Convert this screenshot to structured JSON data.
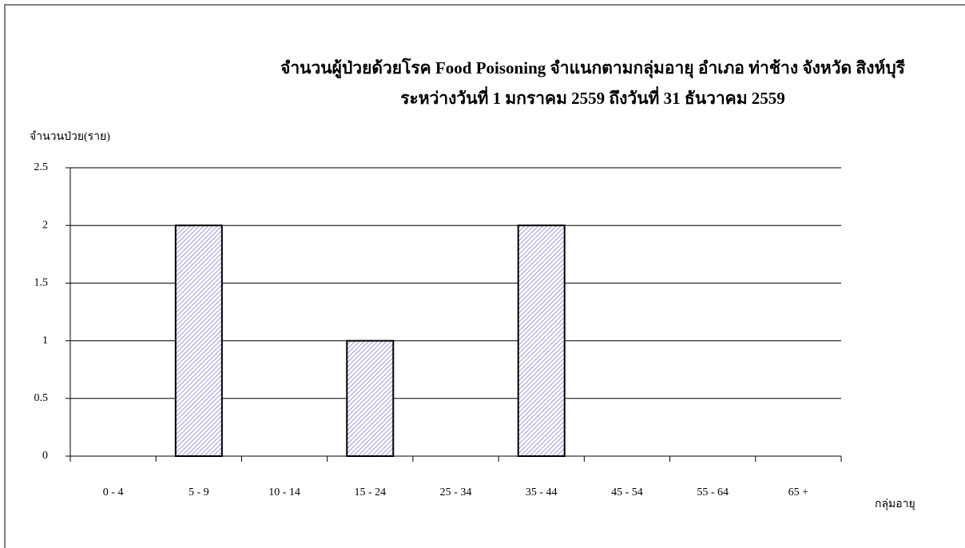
{
  "chart_data": {
    "type": "bar",
    "title": "จำนวนผู้ป่วยด้วยโรค Food Poisoning จำแนกตามกลุ่มอายุ   อำเภอ ท่าช้าง จังหวัด สิงห์บุรี",
    "subtitle": "ระหว่างวันที่  1 มกราคม 2559  ถึงวันที่  31 ธันวาคม 2559",
    "y_label": "จำนวนป่วย(ราย)",
    "x_label": "กลุ่มอายุ",
    "categories": [
      "0 - 4",
      "5 - 9",
      "10 - 14",
      "15 - 24",
      "25 - 34",
      "35 - 44",
      "45 - 54",
      "55 - 64",
      "65 +"
    ],
    "values": [
      0,
      2,
      0,
      1,
      0,
      2,
      0,
      0,
      0
    ],
    "color": "#7b7bd0",
    "ylim": [
      0,
      2.5
    ],
    "yticks": [
      0,
      0.5,
      1,
      1.5,
      2,
      2.5
    ],
    "grid": true
  }
}
